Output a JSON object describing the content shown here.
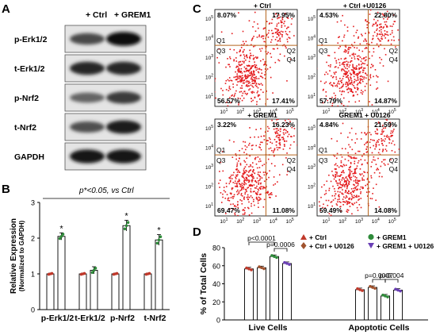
{
  "panels": {
    "A": {
      "letter": "A",
      "headers": [
        "+ Ctrl",
        "+ GREM1"
      ],
      "blots": [
        {
          "label": "p-Erk1/2",
          "ctrl": 0.55,
          "grem1": 0.95
        },
        {
          "label": "t-Erk1/2",
          "ctrl": 0.8,
          "grem1": 0.8
        },
        {
          "label": "p-Nrf2",
          "ctrl": 0.35,
          "grem1": 0.65
        },
        {
          "label": "t-Nrf2",
          "ctrl": 0.5,
          "grem1": 0.85
        },
        {
          "label": "GAPDH",
          "ctrl": 0.9,
          "grem1": 0.9
        }
      ]
    },
    "B": {
      "letter": "B",
      "annotation": "p*<0.05, vs Ctrl",
      "significance_mark": "*",
      "chart_data": {
        "type": "bar",
        "ylabel": "Relative Expression",
        "ylabel2": "(Normalized to GAPDH)",
        "ylim": [
          0,
          3
        ],
        "yticks": [
          "0",
          "1",
          "2",
          "3"
        ],
        "categories": [
          "p-Erk1/2",
          "t-Erk1/2",
          "p-Nrf2",
          "t-Nrf2"
        ],
        "groups": [
          {
            "ctrl": 1.0,
            "grem1": 2.05,
            "err": 0.1,
            "sig": true
          },
          {
            "ctrl": 1.0,
            "grem1": 1.1,
            "err": 0.1,
            "sig": false
          },
          {
            "ctrl": 1.0,
            "grem1": 2.35,
            "err": 0.15,
            "sig": true
          },
          {
            "ctrl": 1.0,
            "grem1": 1.95,
            "err": 0.15,
            "sig": true
          }
        ],
        "colors": {
          "ctrl": "#c0392b",
          "grem1": "#2e8b3a"
        }
      }
    },
    "C": {
      "letter": "C",
      "axis_power_labels": {
        "base": "10",
        "exps": [
          "1",
          "2",
          "3",
          "4",
          "5"
        ]
      },
      "plots": [
        {
          "title": "+ Ctrl",
          "q1": "8.07%",
          "q2": "17.95%",
          "q3": "56.57%",
          "q4": "17.41%"
        },
        {
          "title": "+ Ctrl +U0126",
          "q1": "4.53%",
          "q2": "22.80%",
          "q3": "57.79%",
          "q4": "14.87%"
        },
        {
          "title": "+ GREM1",
          "q1": "3.22%",
          "q2": "16.23%",
          "q3": "69.47%",
          "q4": "11.08%"
        },
        {
          "title": "GREM1 + U0126",
          "q1": "4.84%",
          "q2": "21.59%",
          "q3": "59.49%",
          "q4": "14.08%"
        }
      ],
      "quadrant_names": [
        "Q1",
        "Q2",
        "Q3",
        "Q4"
      ]
    },
    "D": {
      "letter": "D",
      "legend": [
        {
          "label": "+ Ctrl",
          "color": "#c0392b",
          "symbol": "triangle"
        },
        {
          "label": "+ GREM1",
          "color": "#2e8b3a",
          "symbol": "circle"
        },
        {
          "label": "+ Ctrl + U0126",
          "color": "#a0522d",
          "symbol": "diamond"
        },
        {
          "label": "+ GREM1 + U0126",
          "color": "#6a3fb5",
          "symbol": "tri-down"
        }
      ],
      "pvalues": {
        "live_a": "p<0.0001",
        "live_b": "p=0.0006",
        "apo_a": "p=0.0007",
        "apo_b": "p=0.004"
      },
      "chart_data": {
        "type": "bar",
        "ylabel": "% of Total Cells",
        "ylim": [
          0,
          80
        ],
        "yticks": [
          "0",
          "20",
          "40",
          "60",
          "80"
        ],
        "categories": [
          "Live Cells",
          "Apoptotic Cells"
        ],
        "series": [
          {
            "name": "+ Ctrl",
            "values": [
              56.5,
              33.5
            ]
          },
          {
            "name": "+ Ctrl + U0126",
            "values": [
              57.8,
              36.0
            ]
          },
          {
            "name": "+ GREM1",
            "values": [
              70.2,
              26.5
            ]
          },
          {
            "name": "+ GREM1 + U0126",
            "values": [
              62.5,
              33.0
            ]
          }
        ]
      }
    }
  }
}
